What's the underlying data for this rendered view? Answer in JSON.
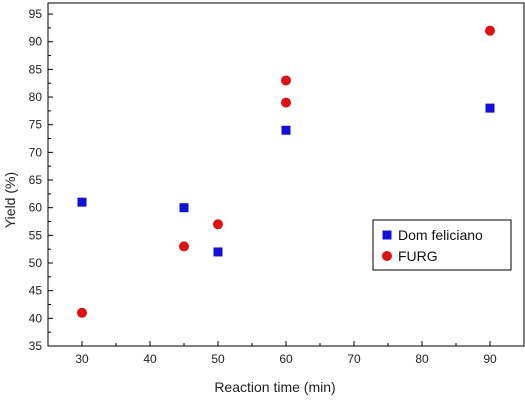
{
  "chart_data": {
    "type": "scatter",
    "xlabel": "Reaction time (min)",
    "ylabel": "Yield (%)",
    "xlim": [
      25,
      95
    ],
    "ylim": [
      35,
      97
    ],
    "x_ticks": [
      30,
      40,
      50,
      60,
      70,
      80,
      90
    ],
    "y_ticks": [
      35,
      40,
      45,
      50,
      55,
      60,
      65,
      70,
      75,
      80,
      85,
      90,
      95
    ],
    "grid": false,
    "legend_position": "right",
    "series": [
      {
        "name": "Dom feliciano",
        "marker": "square",
        "color": "#1010d8",
        "points": [
          [
            30,
            61
          ],
          [
            45,
            60
          ],
          [
            50,
            52
          ],
          [
            60,
            74
          ],
          [
            90,
            78
          ]
        ]
      },
      {
        "name": "FURG",
        "marker": "circle",
        "color": "#dd1111",
        "points": [
          [
            30,
            41
          ],
          [
            45,
            53
          ],
          [
            50,
            57
          ],
          [
            60,
            79
          ],
          [
            60,
            83
          ],
          [
            90,
            92
          ]
        ]
      }
    ]
  }
}
